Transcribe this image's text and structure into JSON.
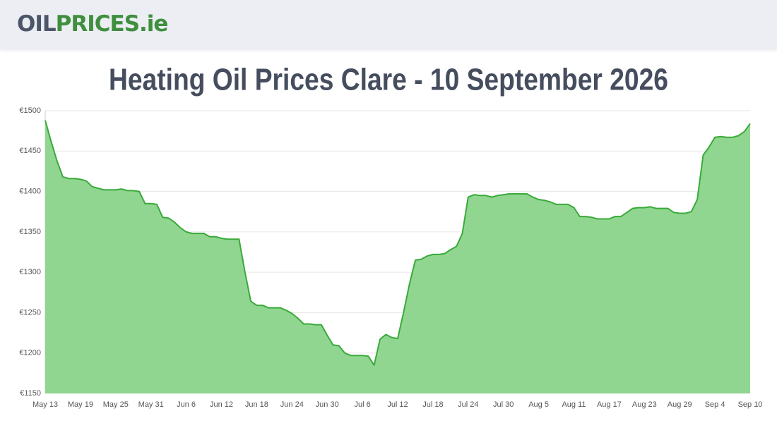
{
  "header": {
    "logo_part1": "OIL",
    "logo_part2": "PRICES.ie"
  },
  "chart_data": {
    "type": "area",
    "title": "Heating Oil Prices Clare - 10 September 2026",
    "categories": [
      "May 13",
      null,
      null,
      null,
      null,
      null,
      "May 19",
      null,
      null,
      null,
      null,
      null,
      "May 25",
      null,
      null,
      null,
      null,
      null,
      "May 31",
      null,
      null,
      null,
      null,
      null,
      "Jun 6",
      null,
      null,
      null,
      null,
      null,
      "Jun 12",
      null,
      null,
      null,
      null,
      null,
      "Jun 18",
      null,
      null,
      null,
      null,
      null,
      "Jun 24",
      null,
      null,
      null,
      null,
      null,
      "Jun 30",
      null,
      null,
      null,
      null,
      null,
      "Jul 6",
      null,
      null,
      null,
      null,
      null,
      "Jul 12",
      null,
      null,
      null,
      null,
      null,
      "Jul 18",
      null,
      null,
      null,
      null,
      null,
      "Jul 24",
      null,
      null,
      null,
      null,
      null,
      "Jul 30",
      null,
      null,
      null,
      null,
      null,
      "Aug 5",
      null,
      null,
      null,
      null,
      null,
      "Aug 11",
      null,
      null,
      null,
      null,
      null,
      "Aug 17",
      null,
      null,
      null,
      null,
      null,
      "Aug 23",
      null,
      null,
      null,
      null,
      null,
      "Aug 29",
      null,
      null,
      null,
      null,
      null,
      "Sep 4",
      null,
      null,
      null,
      null,
      null,
      "Sep 10"
    ],
    "series": [
      {
        "color": "#3aaa3a",
        "fill": "#90d690",
        "values": [
          1488,
          1462,
          1438,
          1418,
          1416,
          1416,
          1415,
          1413,
          1406,
          1404,
          1402,
          1402,
          1402,
          1403,
          1401,
          1401,
          1400,
          1385,
          1385,
          1384,
          1368,
          1367,
          1362,
          1355,
          1350,
          1348,
          1348,
          1348,
          1344,
          1344,
          1342,
          1341,
          1341,
          1341,
          1300,
          1264,
          1259,
          1259,
          1256,
          1256,
          1256,
          1253,
          1249,
          1243,
          1236,
          1236,
          1235,
          1235,
          1222,
          1210,
          1209,
          1200,
          1197,
          1197,
          1197,
          1196,
          1185,
          1217,
          1223,
          1219,
          1218,
          1250,
          1285,
          1315,
          1316,
          1320,
          1322,
          1322,
          1323,
          1328,
          1332,
          1348,
          1393,
          1396,
          1395,
          1395,
          1393,
          1395,
          1396,
          1397,
          1397,
          1397,
          1397,
          1393,
          1390,
          1389,
          1387,
          1384,
          1384,
          1384,
          1380,
          1369,
          1369,
          1368,
          1366,
          1366,
          1366,
          1369,
          1369,
          1374,
          1379,
          1380,
          1380,
          1381,
          1379,
          1379,
          1379,
          1374,
          1373,
          1373,
          1375,
          1390,
          1445,
          1455,
          1467,
          1468,
          1467,
          1467,
          1469,
          1474,
          1484
        ]
      }
    ],
    "ylim": [
      1150,
      1500
    ],
    "yticks": [
      {
        "value": 1150,
        "label": "€1150"
      },
      {
        "value": 1200,
        "label": "€1200"
      },
      {
        "value": 1250,
        "label": "€1250"
      },
      {
        "value": 1300,
        "label": "€1300"
      },
      {
        "value": 1350,
        "label": "€1350"
      },
      {
        "value": 1400,
        "label": "€1400"
      },
      {
        "value": 1450,
        "label": "€1450"
      },
      {
        "value": 1500,
        "label": "€1500"
      }
    ],
    "grid": true
  }
}
